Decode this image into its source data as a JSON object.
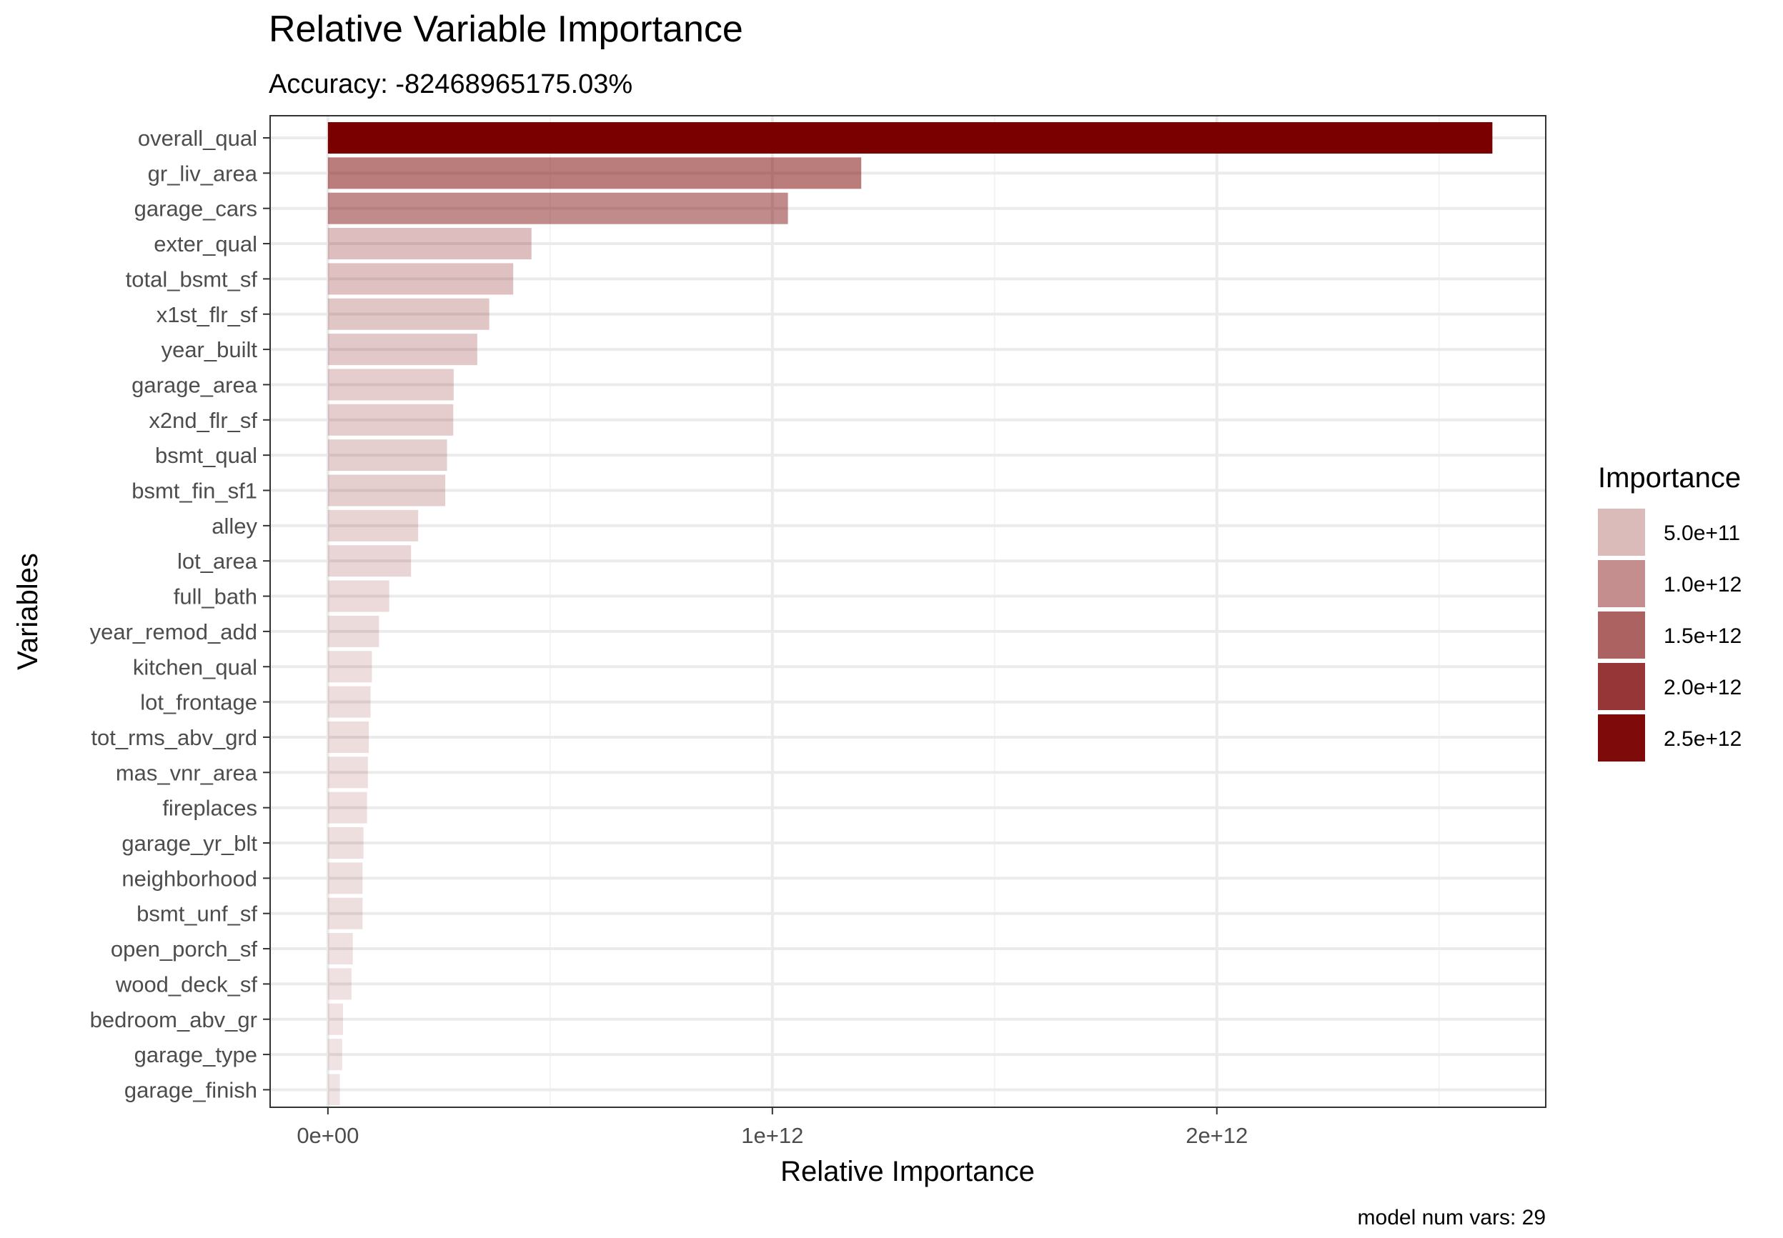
{
  "chart_data": {
    "type": "bar",
    "orientation": "horizontal",
    "title": "Relative Variable Importance",
    "subtitle": "Accuracy: -82468965175.03%",
    "xlabel": "Relative Importance",
    "ylabel": "Variables",
    "caption": "model num vars: 29",
    "xlim": [
      -130000000000.0,
      2740000000000.0
    ],
    "xticks": [
      0,
      1000000000000.0,
      2000000000000.0
    ],
    "xtick_labels": [
      "0e+00",
      "1e+12",
      "2e+12"
    ],
    "grid": true,
    "categories": [
      "overall_qual",
      "gr_liv_area",
      "garage_cars",
      "exter_qual",
      "total_bsmt_sf",
      "x1st_flr_sf",
      "year_built",
      "garage_area",
      "x2nd_flr_sf",
      "bsmt_qual",
      "bsmt_fin_sf1",
      "alley",
      "lot_area",
      "full_bath",
      "year_remod_add",
      "kitchen_qual",
      "lot_frontage",
      "tot_rms_abv_grd",
      "mas_vnr_area",
      "fireplaces",
      "garage_yr_blt",
      "neighborhood",
      "bsmt_unf_sf",
      "open_porch_sf",
      "wood_deck_sf",
      "bedroom_abv_gr",
      "garage_type",
      "garage_finish"
    ],
    "values": [
      2620000000000.0,
      1200000000000.0,
      1035000000000.0,
      458000000000.0,
      417000000000.0,
      363000000000.0,
      336000000000.0,
      283000000000.0,
      282000000000.0,
      268000000000.0,
      264000000000.0,
      203000000000.0,
      187000000000.0,
      138000000000.0,
      115000000000.0,
      99000000000.0,
      96000000000.0,
      92000000000.0,
      90000000000.0,
      88000000000.0,
      80000000000.0,
      78000000000.0,
      78000000000.0,
      56000000000.0,
      53000000000.0,
      34000000000.0,
      32000000000.0,
      27000000000.0
    ],
    "legend": {
      "title": "Importance",
      "position": "right",
      "items": [
        {
          "label": "5.0e+11",
          "value": 500000000000.0
        },
        {
          "label": "1.0e+12",
          "value": 1000000000000.0
        },
        {
          "label": "1.5e+12",
          "value": 1500000000000.0
        },
        {
          "label": "2.0e+12",
          "value": 2000000000000.0
        },
        {
          "label": "2.5e+12",
          "value": 2500000000000.0
        }
      ]
    },
    "colors": {
      "bar_fill": "#7a0000",
      "panel_border": "#333333",
      "grid_major": "#ebebeb",
      "grid_minor": "#f3f3f3",
      "tick_text": "#4d4d4d"
    }
  }
}
